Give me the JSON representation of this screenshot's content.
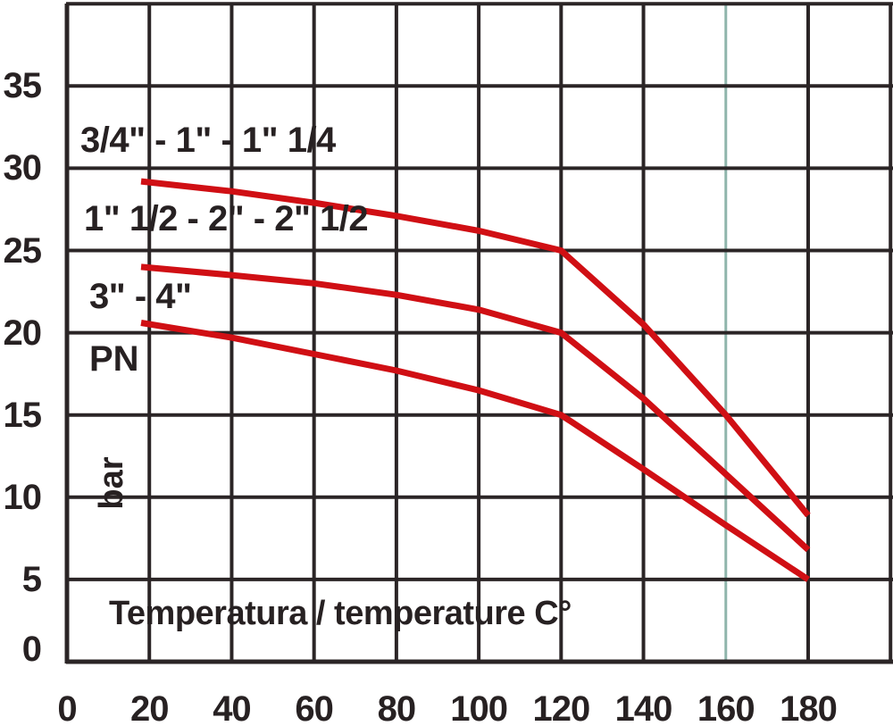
{
  "colors": {
    "curve_red": "#d00f14",
    "grid": "#2b2526",
    "text": "#272122",
    "highlight_line": "#8fb5ac",
    "background": "#ffffff"
  },
  "labels": {
    "x_axis_title": "Temperatura / temperature C°",
    "y_unit_primary": "PN",
    "y_unit_secondary": "bar"
  },
  "chart_data": {
    "type": "line",
    "title": "",
    "xlabel": "Temperatura / temperature C°",
    "ylabel": "PN bar",
    "x_ticks": [
      0,
      20,
      40,
      60,
      80,
      100,
      120,
      140,
      160,
      180
    ],
    "y_ticks": [
      0,
      5,
      10,
      15,
      20,
      25,
      30,
      35
    ],
    "xlim": [
      0,
      200
    ],
    "ylim": [
      0,
      40
    ],
    "grid": true,
    "grid_step_x": 20,
    "grid_step_y": 5,
    "highlight_gridline_x": 160,
    "legend_position": "inline-left",
    "series": [
      {
        "name": "3/4\" - 1\" - 1\" 1/4",
        "points": [
          [
            18,
            29.2
          ],
          [
            40,
            28.6
          ],
          [
            60,
            27.9
          ],
          [
            80,
            27.1
          ],
          [
            100,
            26.2
          ],
          [
            120,
            25
          ],
          [
            140,
            20.5
          ],
          [
            160,
            15
          ],
          [
            180,
            8.9
          ]
        ]
      },
      {
        "name": "1\" 1/2 - 2\" - 2\" 1/2",
        "points": [
          [
            18,
            24
          ],
          [
            40,
            23.5
          ],
          [
            60,
            23
          ],
          [
            80,
            22.3
          ],
          [
            100,
            21.4
          ],
          [
            120,
            20
          ],
          [
            140,
            16
          ],
          [
            160,
            11.4
          ],
          [
            180,
            6.8
          ]
        ]
      },
      {
        "name": "3\" - 4\"",
        "points": [
          [
            18,
            20.6
          ],
          [
            40,
            19.7
          ],
          [
            60,
            18.7
          ],
          [
            80,
            17.7
          ],
          [
            100,
            16.5
          ],
          [
            120,
            15
          ],
          [
            140,
            11.7
          ],
          [
            160,
            8.3
          ],
          [
            180,
            5
          ]
        ]
      }
    ]
  }
}
